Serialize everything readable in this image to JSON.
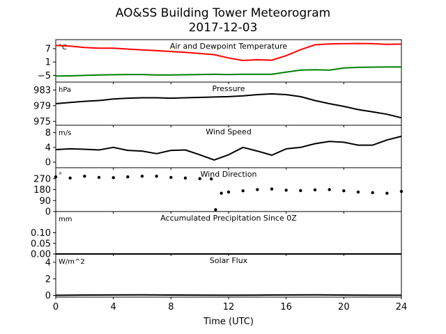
{
  "figure": {
    "title_line1": "AO&SS Building Tower Meteorogram",
    "title_line2": "2017-12-03",
    "xlabel": "Time (UTC)"
  },
  "chart_data": [
    {
      "type": "line",
      "panel": "temperature",
      "title": "Air and Dewpoint Temperature",
      "unit": "°C",
      "ylim": [
        -8,
        11
      ],
      "yticks": [
        -5,
        1,
        7
      ],
      "ytick_labels": [
        "−5",
        "1",
        "7"
      ],
      "series": [
        {
          "color": "#ff0000",
          "x": [
            0,
            1,
            2,
            3,
            4,
            5,
            6,
            7,
            8,
            9,
            10,
            11,
            12,
            13,
            14,
            15,
            16,
            17,
            18,
            19,
            20,
            21,
            22,
            23,
            24
          ],
          "values": [
            8.4,
            8.1,
            7.5,
            7.2,
            7.2,
            6.8,
            6.4,
            6.1,
            5.7,
            5.3,
            4.8,
            4.3,
            2.8,
            1.7,
            2.0,
            1.8,
            3.8,
            6.5,
            8.7,
            9.1,
            9.2,
            9.3,
            9.2,
            8.9,
            9.0
          ]
        },
        {
          "color": "#008000",
          "x": [
            0,
            1,
            2,
            3,
            4,
            5,
            6,
            7,
            8,
            9,
            10,
            11,
            12,
            13,
            14,
            15,
            16,
            17,
            18,
            19,
            20,
            21,
            22,
            23,
            24
          ],
          "values": [
            -5.3,
            -5.2,
            -5.0,
            -4.8,
            -4.7,
            -4.6,
            -4.6,
            -4.8,
            -4.8,
            -4.7,
            -4.6,
            -4.5,
            -4.6,
            -4.5,
            -4.5,
            -4.5,
            -3.5,
            -2.6,
            -2.5,
            -2.6,
            -1.7,
            -1.4,
            -1.3,
            -1.2,
            -1.2
          ]
        }
      ]
    },
    {
      "type": "line",
      "panel": "pressure",
      "title": "Pressure",
      "unit": "hPa",
      "ylim": [
        974,
        985
      ],
      "yticks": [
        975,
        979,
        983
      ],
      "ytick_labels": [
        "975",
        "979",
        "983"
      ],
      "series": [
        {
          "color": "#000000",
          "x": [
            0,
            1,
            2,
            3,
            4,
            5,
            6,
            7,
            8,
            9,
            10,
            11,
            12,
            13,
            14,
            15,
            16,
            17,
            18,
            19,
            20,
            21,
            22,
            23,
            24
          ],
          "values": [
            979.5,
            979.8,
            980.1,
            980.3,
            980.7,
            980.9,
            981.0,
            981.0,
            980.9,
            981.0,
            981.1,
            981.2,
            981.3,
            981.5,
            981.8,
            982.0,
            981.8,
            981.3,
            980.3,
            979.5,
            978.8,
            978.0,
            977.4,
            976.8,
            975.9
          ]
        }
      ]
    },
    {
      "type": "line",
      "panel": "wind_speed",
      "title": "Wind Speed",
      "unit": "m/s",
      "ylim": [
        -1.5,
        10
      ],
      "yticks": [
        0,
        4,
        8
      ],
      "ytick_labels": [
        "0",
        "4",
        "8"
      ],
      "series": [
        {
          "color": "#000000",
          "x": [
            0,
            1,
            2,
            3,
            4,
            5,
            6,
            7,
            8,
            9,
            10,
            11,
            12,
            13,
            14,
            15,
            16,
            17,
            18,
            19,
            20,
            21,
            22,
            23,
            24
          ],
          "values": [
            3.4,
            3.6,
            3.5,
            3.3,
            4.0,
            3.2,
            3.0,
            2.3,
            3.2,
            3.3,
            2.0,
            0.6,
            2.0,
            4.0,
            3.0,
            1.9,
            3.6,
            4.0,
            5.0,
            5.6,
            5.4,
            4.6,
            4.6,
            6.0,
            7.0
          ]
        }
      ]
    },
    {
      "type": "scatter",
      "panel": "wind_direction",
      "title": "Wind Direction",
      "unit": "°",
      "ylim": [
        0,
        360
      ],
      "yticks": [
        0,
        90,
        180,
        270
      ],
      "ytick_labels": [
        "0",
        "90",
        "180",
        "270"
      ],
      "series": [
        {
          "color": "#000000",
          "x": [
            0,
            1,
            2,
            3,
            4,
            5,
            6,
            7,
            8,
            9,
            10,
            10.8,
            11.1,
            11.5,
            12,
            13,
            14,
            15,
            16,
            17,
            18,
            19,
            20,
            21,
            22,
            23,
            24
          ],
          "values": [
            285,
            275,
            290,
            280,
            278,
            285,
            290,
            290,
            280,
            275,
            270,
            268,
            15,
            150,
            160,
            170,
            180,
            185,
            175,
            172,
            178,
            180,
            170,
            160,
            155,
            150,
            165
          ]
        }
      ]
    },
    {
      "type": "line",
      "panel": "precipitation",
      "title": "Accumulated Precipitation Since 0Z",
      "unit": "mm",
      "ylim": [
        0,
        0.2
      ],
      "yticks": [
        0.0,
        0.05,
        0.1
      ],
      "ytick_labels": [
        "0.00",
        "0.05",
        "0.10"
      ],
      "series": [
        {
          "color": "#000000",
          "x": [
            0,
            24
          ],
          "values": [
            0,
            0
          ]
        }
      ]
    },
    {
      "type": "line",
      "panel": "solar",
      "title": "Solar Flux",
      "unit": "W/m^2",
      "ylim": [
        -0.2,
        5
      ],
      "yticks": [
        0,
        2,
        4
      ],
      "ytick_labels": [
        "0",
        "2",
        "4"
      ],
      "series": [
        {
          "color": "#000000",
          "x": [
            0,
            2,
            4,
            6,
            8,
            10,
            12,
            14,
            16,
            18,
            20,
            22,
            24
          ],
          "values": [
            0.02,
            0.05,
            0.06,
            0.07,
            0.05,
            0.04,
            0.03,
            0.04,
            0.06,
            0.08,
            0.05,
            0.03,
            0.03
          ]
        }
      ]
    }
  ],
  "x_axis": {
    "xlim": [
      0,
      24
    ],
    "ticks": [
      0,
      4,
      8,
      12,
      16,
      20,
      24
    ],
    "tick_labels": [
      "0",
      "4",
      "8",
      "12",
      "16",
      "20",
      "24"
    ]
  }
}
